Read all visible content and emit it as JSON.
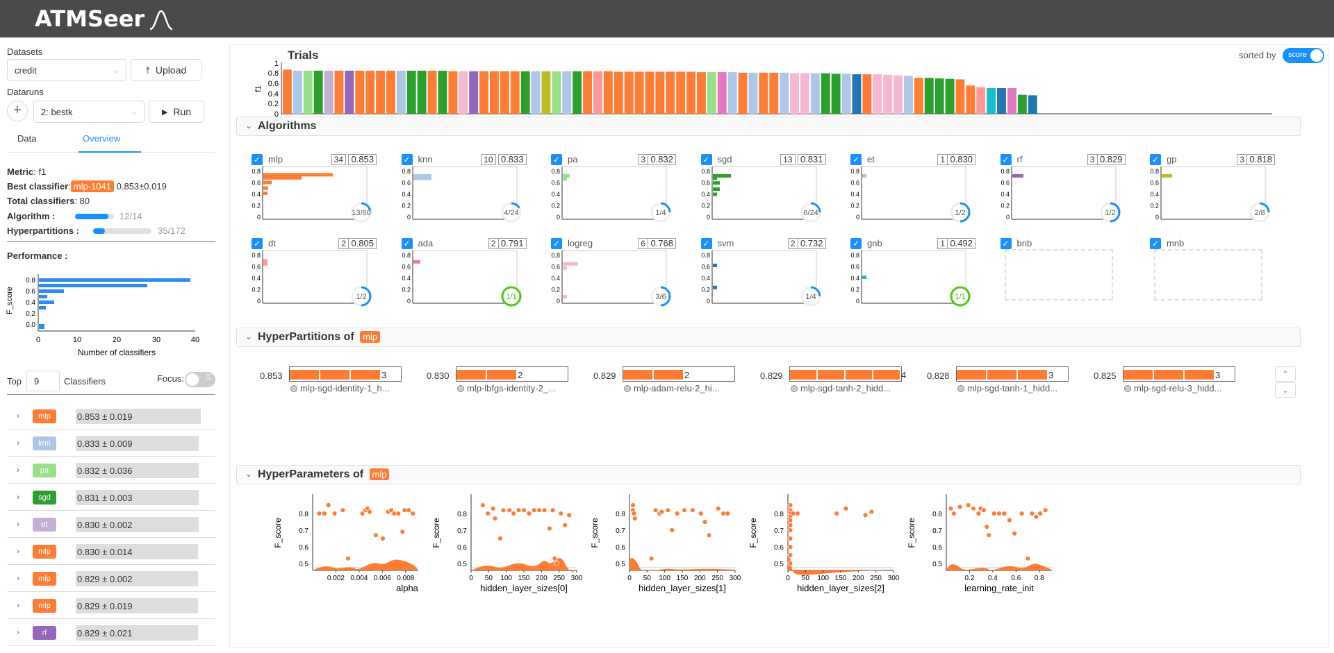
{
  "app": {
    "title": "ATMSeer"
  },
  "sidebar": {
    "datasets_label": "Datasets",
    "dataset_value": "credit",
    "upload_label": "Upload",
    "dataruns_label": "Dataruns",
    "datarun_value": "2: bestk",
    "run_label": "Run",
    "tabs": [
      "Data",
      "Overview"
    ],
    "metric_key": "Metric",
    "metric_value": "f1",
    "best_key": "Best classifier",
    "best_tag": "mlp-1041",
    "best_score": "0.853±0.019",
    "total_key": "Total classifiers",
    "total_value": "80",
    "algorithm_key": "Algorithm :",
    "algorithm_progress": 0.857,
    "algorithm_text": "12/14",
    "hyperpart_key": "Hyperpartitions :",
    "hyperpart_progress": 0.203,
    "hyperpart_text": "35/172",
    "performance_label": "Performance :",
    "perf_chart": {
      "ylabel": "F_score",
      "xlabel": "Number of classifiers",
      "yticks": [
        "0.8",
        "0.6",
        "0.4",
        "0.2",
        "0.0"
      ],
      "xticks": [
        "0",
        "10",
        "20",
        "30",
        "40"
      ]
    },
    "top_label": "Top",
    "top_value": "9",
    "classifiers_label": "Classifiers",
    "focus_label": "Focus:",
    "classifiers": [
      {
        "tag": "mlp",
        "color": "#ff7c35",
        "score": "0.853 ± 0.019",
        "w": 180
      },
      {
        "tag": "knn",
        "color": "#aec7e8",
        "score": "0.833 ± 0.009",
        "w": 177
      },
      {
        "tag": "pa",
        "color": "#98df8a",
        "score": "0.832 ± 0.036",
        "w": 177
      },
      {
        "tag": "sgd",
        "color": "#2ca02c",
        "score": "0.831 ± 0.003",
        "w": 177
      },
      {
        "tag": "et",
        "color": "#c5b0d5",
        "score": "0.830 ± 0.002",
        "w": 177
      },
      {
        "tag": "mlp",
        "color": "#ff7c35",
        "score": "0.830 ± 0.014",
        "w": 176
      },
      {
        "tag": "mlp",
        "color": "#ff7c35",
        "score": "0.829 ± 0.002",
        "w": 176
      },
      {
        "tag": "mlp",
        "color": "#ff7c35",
        "score": "0.829 ± 0.019",
        "w": 176
      },
      {
        "tag": "rf",
        "color": "#9467bd",
        "score": "0.829 ± 0.021",
        "w": 176
      }
    ]
  },
  "trials": {
    "title": "Trials",
    "ylabel": "f1",
    "yticks": [
      "1",
      "0.8",
      "0.6",
      "0.4",
      "0.2",
      "0"
    ],
    "sorted_by": "sorted by",
    "toggle_label": "score"
  },
  "algorithms": {
    "title": "Algorithms",
    "items": [
      {
        "name": "mlp",
        "count": "34",
        "score": "0.853",
        "ratio": "13/60",
        "progress": 0.22,
        "complete": false,
        "color": "#ff7c35"
      },
      {
        "name": "knn",
        "count": "10",
        "score": "0.833",
        "ratio": "4/24",
        "progress": 0.17,
        "complete": false,
        "color": "#aec7e8"
      },
      {
        "name": "pa",
        "count": "3",
        "score": "0.832",
        "ratio": "1/4",
        "progress": 0.25,
        "complete": false,
        "color": "#98df8a"
      },
      {
        "name": "sgd",
        "count": "13",
        "score": "0.831",
        "ratio": "6/24",
        "progress": 0.25,
        "complete": false,
        "color": "#2ca02c"
      },
      {
        "name": "et",
        "count": "1",
        "score": "0.830",
        "ratio": "1/2",
        "progress": 0.5,
        "complete": false,
        "color": "#c5b0d5"
      },
      {
        "name": "rf",
        "count": "3",
        "score": "0.829",
        "ratio": "1/2",
        "progress": 0.5,
        "complete": false,
        "color": "#9467bd"
      },
      {
        "name": "gp",
        "count": "3",
        "score": "0.818",
        "ratio": "2/8",
        "progress": 0.25,
        "complete": false,
        "color": "#bcbd22"
      },
      {
        "name": "dt",
        "count": "2",
        "score": "0.805",
        "ratio": "1/2",
        "progress": 0.5,
        "complete": false,
        "color": "#ff9896"
      },
      {
        "name": "ada",
        "count": "2",
        "score": "0.791",
        "ratio": "1/1",
        "progress": 1.0,
        "complete": true,
        "color": "#e377c2"
      },
      {
        "name": "logreg",
        "count": "6",
        "score": "0.768",
        "ratio": "3/6",
        "progress": 0.5,
        "complete": false,
        "color": "#f7b6d2"
      },
      {
        "name": "svm",
        "count": "2",
        "score": "0.732",
        "ratio": "1/4",
        "progress": 0.25,
        "complete": false,
        "color": "#1f77b4"
      },
      {
        "name": "gnb",
        "count": "1",
        "score": "0.492",
        "ratio": "1/1",
        "progress": 1.0,
        "complete": true,
        "color": "#17becf"
      },
      {
        "name": "bnb",
        "empty": true
      },
      {
        "name": "mnb",
        "empty": true
      }
    ],
    "yticks": [
      "0.8",
      "0.6",
      "0.4",
      "0.2",
      "0"
    ]
  },
  "hyperpartitions": {
    "title": "HyperPartitions of",
    "tag": "mlp",
    "items": [
      {
        "score": "0.853",
        "count": "3",
        "name": "mlp-sgd-identity-1_h..."
      },
      {
        "score": "0.830",
        "count": "2",
        "name": "mlp-lbfgs-identity-2_..."
      },
      {
        "score": "0.829",
        "count": "2",
        "name": "mlp-adam-relu-2_hi..."
      },
      {
        "score": "0.829",
        "count": "4",
        "name": "mlp-sgd-tanh-2_hidd..."
      },
      {
        "score": "0.828",
        "count": "3",
        "name": "mlp-sgd-tanh-1_hidd..."
      },
      {
        "score": "0.825",
        "count": "3",
        "name": "mlp-sgd-relu-3_hidd..."
      }
    ]
  },
  "hyperparameters": {
    "title": "HyperParameters of",
    "tag": "mlp",
    "ylabel": "F_score",
    "yticks": [
      "0.8",
      "0.7",
      "0.6",
      "0.5"
    ],
    "plots": [
      {
        "xlabel": "alpha",
        "xticks": [
          "0.002",
          "0.004",
          "0.006",
          "0.008"
        ]
      },
      {
        "xlabel": "hidden_layer_sizes[0]",
        "xticks": [
          "0",
          "50",
          "100",
          "150",
          "200",
          "250",
          "300"
        ]
      },
      {
        "xlabel": "hidden_layer_sizes[1]",
        "xticks": [
          "0",
          "50",
          "100",
          "150",
          "200",
          "250",
          "300"
        ]
      },
      {
        "xlabel": "hidden_layer_sizes[2]",
        "xticks": [
          "0",
          "50",
          "100",
          "150",
          "200",
          "250",
          "300"
        ]
      },
      {
        "xlabel": "learning_rate_init",
        "xticks": [
          "0.2",
          "0.4",
          "0.6",
          "0.8"
        ]
      }
    ]
  },
  "colors": {
    "accent": "#1890ff",
    "mlp": "#ff7c35",
    "complete": "#52c41a"
  }
}
